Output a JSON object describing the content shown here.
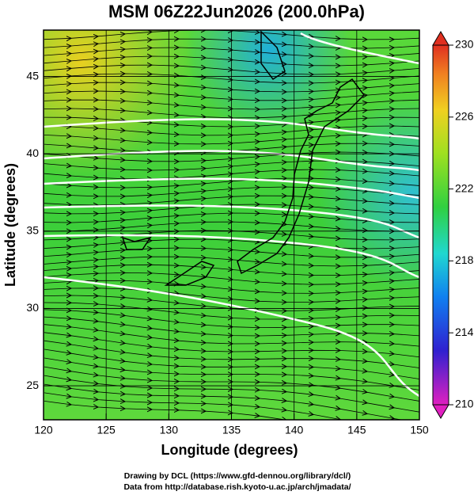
{
  "title": "MSM 06Z22Jun2026 (200.0hPa)",
  "x_axis": {
    "label": "Longitude (degrees)",
    "lim": [
      120,
      150
    ],
    "ticks": [
      120,
      125,
      130,
      135,
      140,
      145,
      150
    ]
  },
  "y_axis": {
    "label": "Latitude  (degrees)",
    "lim": [
      22.8,
      48.0
    ],
    "ticks": [
      25,
      30,
      35,
      40,
      45
    ]
  },
  "colorbar": {
    "lim": [
      210,
      230
    ],
    "ticks": [
      210,
      214,
      218,
      222,
      226,
      230
    ]
  },
  "credits": [
    "Drawing by DCL (https://www.gfd-dennou.org/library/dcl/)",
    "Data from http://database.rish.kyoto-u.ac.jp/arch/jmadata/"
  ]
}
